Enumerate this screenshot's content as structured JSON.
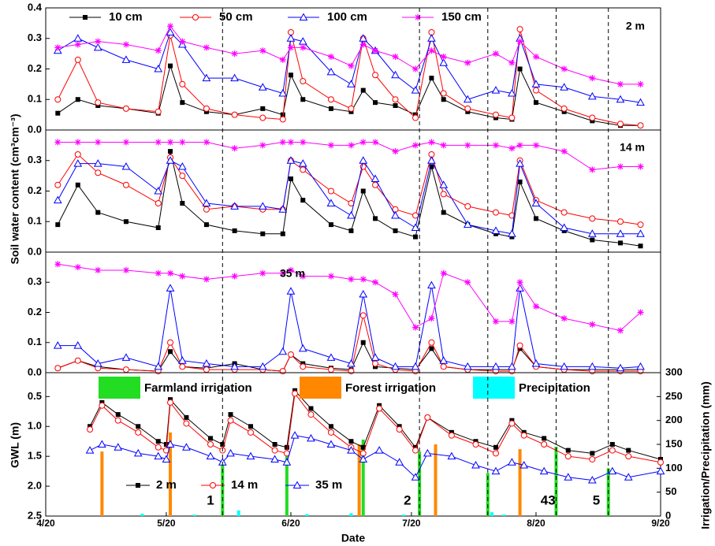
{
  "chart_data": {
    "type": "line",
    "x_label": "Date",
    "xlim": [
      "4/20",
      "9/20"
    ],
    "xticks": [
      "4/20",
      "5/20",
      "6/20",
      "7/20",
      "8/20",
      "9/20"
    ],
    "event_lines": [
      "6/3",
      "7/22",
      "8/8",
      "8/25",
      "9/7"
    ],
    "annotations": [
      {
        "text": "1",
        "x": "5/31"
      },
      {
        "text": "2",
        "x": "7/19"
      },
      {
        "text": "43",
        "x": "8/23"
      },
      {
        "text": "5",
        "x": "9/4"
      }
    ],
    "soil": {
      "y_label": "Soil water content (cm³cm⁻³)",
      "legend": [
        {
          "name": "10 cm",
          "color": "#000000",
          "marker": "square"
        },
        {
          "name": "50 cm",
          "color": "#ff0000",
          "marker": "circle"
        },
        {
          "name": "100 cm",
          "color": "#0000ff",
          "marker": "triangle"
        },
        {
          "name": "150 cm",
          "color": "#ff00ff",
          "marker": "asterisk"
        }
      ],
      "x": [
        "4/23",
        "4/28",
        "5/3",
        "5/10",
        "5/18",
        "5/21",
        "5/24",
        "5/30",
        "6/6",
        "6/13",
        "6/18",
        "6/20",
        "6/23",
        "6/30",
        "7/5",
        "7/8",
        "7/11",
        "7/16",
        "7/21",
        "7/25",
        "7/28",
        "8/3",
        "8/10",
        "8/14",
        "8/16",
        "8/20",
        "8/27",
        "9/3",
        "9/10",
        "9/15"
      ],
      "panels": [
        {
          "label": "2 m",
          "ylim": [
            0,
            0.4
          ],
          "yticks": [
            {
              "value": 0,
              "label": "0.0"
            },
            0.1,
            0.2,
            0.3,
            0.4
          ],
          "series": [
            [
              0.055,
              0.1,
              0.08,
              0.07,
              0.055,
              0.21,
              0.09,
              0.06,
              0.05,
              0.07,
              0.05,
              0.18,
              0.1,
              0.07,
              0.06,
              0.13,
              0.09,
              0.08,
              0.05,
              0.17,
              0.1,
              0.06,
              0.04,
              0.035,
              0.2,
              0.09,
              0.06,
              0.03,
              0.015,
              0.015
            ],
            [
              0.1,
              0.23,
              0.09,
              0.07,
              0.06,
              0.31,
              0.15,
              0.07,
              0.05,
              0.04,
              0.035,
              0.32,
              0.16,
              0.1,
              0.07,
              0.3,
              0.18,
              0.1,
              0.04,
              0.32,
              0.12,
              0.07,
              0.05,
              0.04,
              0.33,
              0.13,
              0.07,
              0.04,
              0.02,
              0.015
            ],
            [
              0.26,
              0.3,
              0.27,
              0.23,
              0.2,
              0.32,
              0.28,
              0.17,
              0.17,
              0.14,
              0.12,
              0.3,
              0.29,
              0.19,
              0.15,
              0.3,
              0.26,
              0.18,
              0.13,
              0.3,
              0.22,
              0.1,
              0.13,
              0.12,
              0.3,
              0.15,
              0.14,
              0.11,
              0.1,
              0.09
            ],
            [
              0.27,
              0.28,
              0.29,
              0.28,
              0.26,
              0.34,
              0.29,
              0.27,
              0.25,
              0.26,
              0.23,
              0.27,
              0.27,
              0.24,
              0.21,
              0.28,
              0.26,
              0.24,
              0.2,
              0.26,
              0.24,
              0.22,
              0.25,
              0.22,
              0.29,
              0.24,
              0.2,
              0.17,
              0.15,
              0.15
            ]
          ]
        },
        {
          "label": "14 m",
          "ylim": [
            0,
            0.4
          ],
          "yticks": [
            {
              "value": 0,
              "label": "0.0"
            },
            0.1,
            0.2,
            0.3
          ],
          "series": [
            [
              0.09,
              0.22,
              0.13,
              0.1,
              0.08,
              0.33,
              0.16,
              0.09,
              0.07,
              0.06,
              0.06,
              0.24,
              0.17,
              0.09,
              0.07,
              0.2,
              0.11,
              0.07,
              0.05,
              0.28,
              0.13,
              0.09,
              0.06,
              0.05,
              0.23,
              0.11,
              0.07,
              0.04,
              0.03,
              0.02
            ],
            [
              0.22,
              0.32,
              0.26,
              0.22,
              0.16,
              0.31,
              0.25,
              0.14,
              0.15,
              0.14,
              0.14,
              0.3,
              0.27,
              0.2,
              0.16,
              0.28,
              0.22,
              0.14,
              0.12,
              0.32,
              0.19,
              0.15,
              0.13,
              0.12,
              0.3,
              0.17,
              0.13,
              0.11,
              0.1,
              0.09
            ],
            [
              0.17,
              0.29,
              0.29,
              0.28,
              0.2,
              0.3,
              0.28,
              0.16,
              0.15,
              0.15,
              0.14,
              0.3,
              0.29,
              0.16,
              0.12,
              0.3,
              0.24,
              0.12,
              0.08,
              0.3,
              0.22,
              0.09,
              0.07,
              0.06,
              0.29,
              0.16,
              0.08,
              0.06,
              0.06,
              0.06
            ],
            [
              0.36,
              0.36,
              0.36,
              0.36,
              0.36,
              0.36,
              0.36,
              0.36,
              0.34,
              0.35,
              0.36,
              0.36,
              0.36,
              0.35,
              0.35,
              0.36,
              0.36,
              0.33,
              0.35,
              0.36,
              0.35,
              0.35,
              0.35,
              0.34,
              0.35,
              0.35,
              0.33,
              0.27,
              0.28,
              0.28
            ]
          ]
        },
        {
          "label": "35 m",
          "ylim": [
            0,
            0.4
          ],
          "yticks": [
            {
              "value": 0,
              "label": "0.0"
            },
            0.1,
            0.2,
            0.3
          ],
          "series": [
            [
              0.015,
              0.04,
              0.02,
              0.01,
              0.005,
              0.07,
              0.02,
              0.015,
              0.03,
              0.01,
              0.005,
              0.06,
              0.03,
              0.015,
              0.01,
              0.1,
              0.02,
              0.015,
              0.01,
              0.08,
              0.02,
              0.01,
              0.01,
              0.01,
              0.08,
              0.02,
              0.01,
              0.01,
              0.01,
              0.01
            ],
            [
              0.015,
              0.04,
              0.015,
              0.01,
              0.005,
              0.1,
              0.02,
              0.01,
              0.01,
              0.01,
              0.005,
              0.06,
              0.02,
              0.01,
              0.005,
              0.19,
              0.03,
              0.01,
              0.005,
              0.1,
              0.02,
              0.01,
              0.005,
              0.005,
              0.09,
              0.02,
              0.01,
              0.005,
              0.005,
              0.005
            ],
            [
              0.09,
              0.09,
              0.03,
              0.05,
              0.02,
              0.28,
              0.04,
              0.03,
              0.02,
              0.02,
              0.07,
              0.27,
              0.08,
              0.05,
              0.03,
              0.26,
              0.05,
              0.02,
              0.02,
              0.29,
              0.04,
              0.02,
              0.02,
              0.02,
              0.28,
              0.03,
              0.02,
              0.02,
              0.015,
              0.02
            ],
            [
              0.36,
              0.35,
              0.34,
              0.34,
              0.33,
              0.33,
              0.32,
              0.31,
              0.32,
              0.33,
              0.33,
              0.34,
              0.32,
              0.32,
              0.31,
              0.31,
              0.3,
              0.26,
              0.15,
              0.18,
              0.33,
              0.3,
              0.17,
              0.17,
              0.3,
              0.22,
              0.18,
              0.16,
              0.14,
              0.2
            ]
          ]
        }
      ]
    },
    "gwl": {
      "y_label": "GWL (m)",
      "ylim": [
        0.1,
        2.5
      ],
      "inverted": true,
      "yticks": [
        0.5,
        {
          "value": 1,
          "label": "1.0"
        },
        1.5,
        {
          "value": 2,
          "label": "2.0"
        },
        2.5
      ],
      "x": [
        "5/1",
        "5/4",
        "5/8",
        "5/13",
        "5/18",
        "5/20",
        "5/21",
        "5/25",
        "5/31",
        "6/3",
        "6/5",
        "6/10",
        "6/16",
        "6/19",
        "6/21",
        "6/25",
        "6/30",
        "7/5",
        "7/8",
        "7/12",
        "7/17",
        "7/21",
        "7/24",
        "7/30",
        "8/5",
        "8/10",
        "8/14",
        "8/17",
        "8/22",
        "8/28",
        "9/3",
        "9/8",
        "9/12",
        "9/20"
      ],
      "series": [
        {
          "name": "2 m",
          "color": "#000000",
          "marker": "square",
          "values": [
            1.0,
            0.6,
            0.8,
            1.0,
            1.25,
            1.3,
            0.55,
            0.85,
            1.2,
            1.3,
            0.8,
            1.0,
            1.3,
            1.35,
            0.4,
            0.7,
            1.0,
            1.25,
            1.35,
            0.65,
            1.0,
            1.35,
            0.85,
            1.1,
            1.25,
            1.35,
            0.9,
            1.1,
            1.2,
            1.4,
            1.45,
            1.3,
            1.4,
            1.55
          ]
        },
        {
          "name": "14 m",
          "color": "#ff0000",
          "marker": "circle",
          "values": [
            1.05,
            0.65,
            0.9,
            1.1,
            1.35,
            1.4,
            0.6,
            0.95,
            1.3,
            1.4,
            0.9,
            1.1,
            1.4,
            1.45,
            0.45,
            0.8,
            1.1,
            1.35,
            1.45,
            0.7,
            1.05,
            1.4,
            0.85,
            1.15,
            1.3,
            1.45,
            0.95,
            1.15,
            1.3,
            1.5,
            1.55,
            1.4,
            1.5,
            1.6
          ]
        },
        {
          "name": "35 m",
          "color": "#0000ff",
          "marker": "triangle",
          "values": [
            1.4,
            1.3,
            1.35,
            1.45,
            1.5,
            1.55,
            1.3,
            1.35,
            1.5,
            1.6,
            1.45,
            1.5,
            1.55,
            1.6,
            1.15,
            1.2,
            1.3,
            1.4,
            1.55,
            1.4,
            1.6,
            1.85,
            1.45,
            1.5,
            1.65,
            1.75,
            1.6,
            1.65,
            1.75,
            1.85,
            1.9,
            1.75,
            1.85,
            1.75
          ]
        }
      ],
      "y2_label": "Irrigation/Precipitation (mm)",
      "y2lim": [
        0,
        300
      ],
      "y2ticks": [
        0,
        50,
        100,
        150,
        200,
        250,
        300
      ],
      "bars": [
        {
          "name": "Farmland irrigation",
          "color": "#22dd22",
          "x": [
            "6/3",
            "6/19",
            "7/8",
            "7/22",
            "8/8",
            "8/25",
            "9/7"
          ],
          "values": [
            115,
            125,
            160,
            135,
            90,
            145,
            100
          ]
        },
        {
          "name": "Forest irrigation",
          "color": "#ff8800",
          "x": [
            "5/4",
            "5/21",
            "7/7",
            "7/26",
            "8/16"
          ],
          "values": [
            135,
            175,
            150,
            150,
            140
          ]
        },
        {
          "name": "Precipitation",
          "color": "#00ffff",
          "x": [
            "5/14",
            "5/27",
            "6/7",
            "6/24",
            "7/5",
            "7/18",
            "8/9",
            "8/12"
          ],
          "values": [
            5,
            3,
            12,
            4,
            6,
            3,
            8,
            3
          ]
        }
      ]
    }
  }
}
